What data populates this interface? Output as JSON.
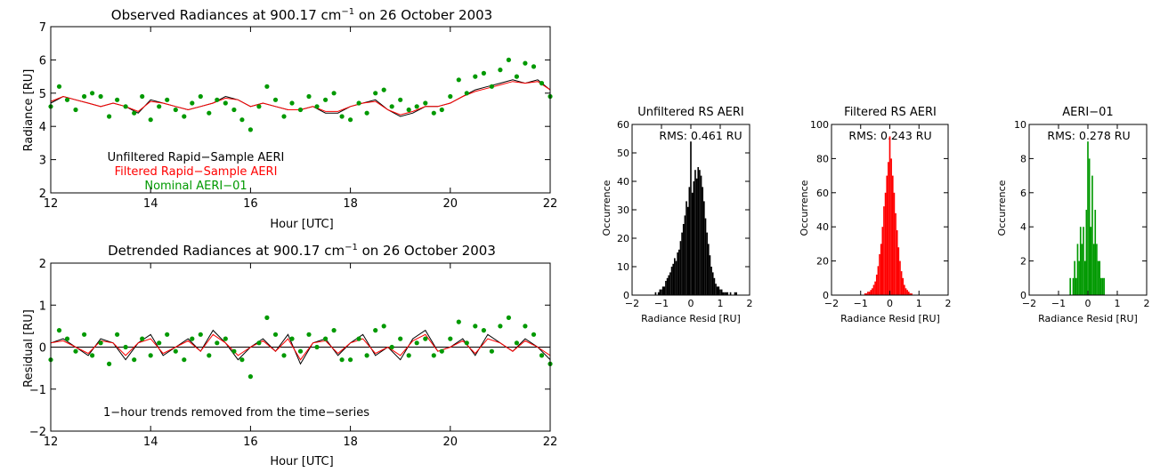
{
  "colors": {
    "unfiltered": "#000000",
    "filtered": "#ff0000",
    "nominal": "#009900",
    "axis": "#000000"
  },
  "chart_data": [
    {
      "type": "line",
      "title": "Observed Radiances at 900.17 cm",
      "title_sup": "−1",
      "title_end": " on 26 October 2003",
      "xlabel": "Hour [UTC]",
      "ylabel": "Radiance [RU]",
      "xlim": [
        12,
        22
      ],
      "ylim": [
        2,
        7
      ],
      "xticks": [
        12,
        14,
        16,
        18,
        20,
        22
      ],
      "yticks": [
        2,
        3,
        4,
        5,
        6,
        7
      ],
      "grid": false,
      "legend": [
        "Unfiltered Rapid−Sample AERI",
        "Filtered Rapid−Sample AERI",
        "Nominal AERI−01"
      ],
      "legend_placement": "lower-left",
      "series": [
        {
          "name": "Unfiltered Rapid−Sample AERI",
          "color": "#000000",
          "style": "line",
          "x": [
            12.0,
            12.25,
            12.5,
            12.75,
            13.0,
            13.25,
            13.5,
            13.75,
            14.0,
            14.25,
            14.5,
            14.75,
            15.0,
            15.25,
            15.5,
            15.75,
            16.0,
            16.25,
            16.5,
            16.75,
            17.0,
            17.25,
            17.5,
            17.75,
            18.0,
            18.25,
            18.5,
            18.75,
            19.0,
            19.25,
            19.5,
            19.75,
            20.0,
            20.25,
            20.5,
            20.75,
            21.0,
            21.25,
            21.5,
            21.75,
            22.0
          ],
          "y": [
            4.7,
            4.9,
            4.8,
            4.7,
            4.6,
            4.7,
            4.6,
            4.4,
            4.8,
            4.7,
            4.6,
            4.5,
            4.6,
            4.7,
            4.9,
            4.8,
            4.6,
            4.7,
            4.6,
            4.5,
            4.5,
            4.6,
            4.4,
            4.4,
            4.6,
            4.7,
            4.8,
            4.5,
            4.3,
            4.4,
            4.6,
            4.6,
            4.7,
            4.9,
            5.1,
            5.2,
            5.3,
            5.4,
            5.3,
            5.4,
            5.1
          ]
        },
        {
          "name": "Filtered Rapid−Sample AERI",
          "color": "#ff0000",
          "style": "line",
          "x": [
            12.0,
            12.25,
            12.5,
            12.75,
            13.0,
            13.25,
            13.5,
            13.75,
            14.0,
            14.25,
            14.5,
            14.75,
            15.0,
            15.25,
            15.5,
            15.75,
            16.0,
            16.25,
            16.5,
            16.75,
            17.0,
            17.25,
            17.5,
            17.75,
            18.0,
            18.25,
            18.5,
            18.75,
            19.0,
            19.25,
            19.5,
            19.75,
            20.0,
            20.25,
            20.5,
            20.75,
            21.0,
            21.25,
            21.5,
            21.75,
            22.0
          ],
          "y": [
            4.75,
            4.9,
            4.8,
            4.7,
            4.6,
            4.7,
            4.6,
            4.45,
            4.75,
            4.7,
            4.6,
            4.5,
            4.6,
            4.7,
            4.85,
            4.8,
            4.6,
            4.7,
            4.6,
            4.5,
            4.5,
            4.6,
            4.45,
            4.45,
            4.6,
            4.7,
            4.75,
            4.5,
            4.35,
            4.45,
            4.6,
            4.6,
            4.7,
            4.9,
            5.05,
            5.15,
            5.25,
            5.35,
            5.3,
            5.35,
            5.1
          ]
        },
        {
          "name": "Nominal AERI−01",
          "color": "#009900",
          "style": "points",
          "x": [
            12.0,
            12.17,
            12.33,
            12.5,
            12.67,
            12.83,
            13.0,
            13.17,
            13.33,
            13.5,
            13.67,
            13.83,
            14.0,
            14.17,
            14.33,
            14.5,
            14.67,
            14.83,
            15.0,
            15.17,
            15.33,
            15.5,
            15.67,
            15.83,
            16.0,
            16.17,
            16.33,
            16.5,
            16.67,
            16.83,
            17.0,
            17.17,
            17.33,
            17.5,
            17.67,
            17.83,
            18.0,
            18.17,
            18.33,
            18.5,
            18.67,
            18.83,
            19.0,
            19.17,
            19.33,
            19.5,
            19.67,
            19.83,
            20.0,
            20.17,
            20.33,
            20.5,
            20.67,
            20.83,
            21.0,
            21.17,
            21.33,
            21.5,
            21.67,
            21.83,
            22.0
          ],
          "y": [
            4.6,
            5.2,
            4.8,
            4.5,
            4.9,
            5.0,
            4.9,
            4.3,
            4.8,
            4.6,
            4.4,
            4.9,
            4.2,
            4.6,
            4.8,
            4.5,
            4.3,
            4.7,
            4.9,
            4.4,
            4.8,
            4.7,
            4.5,
            4.2,
            3.9,
            4.6,
            5.2,
            4.8,
            4.3,
            4.7,
            4.5,
            4.9,
            4.6,
            4.8,
            5.0,
            4.3,
            4.2,
            4.7,
            4.4,
            5.0,
            5.1,
            4.6,
            4.8,
            4.5,
            4.6,
            4.7,
            4.4,
            4.5,
            4.9,
            5.4,
            5.0,
            5.5,
            5.6,
            5.2,
            5.7,
            6.0,
            5.5,
            5.9,
            5.8,
            5.3,
            4.9
          ]
        }
      ]
    },
    {
      "type": "line",
      "title": "Detrended Radiances at 900.17 cm",
      "title_sup": "−1",
      "title_end": " on 26 October 2003",
      "xlabel": "Hour [UTC]",
      "ylabel": "Residual [RU]",
      "xlim": [
        12,
        22
      ],
      "ylim": [
        -2,
        2
      ],
      "xticks": [
        12,
        14,
        16,
        18,
        20,
        22
      ],
      "yticks": [
        -2,
        -1,
        0,
        1,
        2
      ],
      "grid": false,
      "annotation": "1−hour trends removed from the time−series",
      "series": [
        {
          "name": "Unfiltered Rapid−Sample AERI",
          "color": "#000000",
          "style": "line",
          "x": [
            12.0,
            12.25,
            12.5,
            12.75,
            13.0,
            13.25,
            13.5,
            13.75,
            14.0,
            14.25,
            14.5,
            14.75,
            15.0,
            15.25,
            15.5,
            15.75,
            16.0,
            16.25,
            16.5,
            16.75,
            17.0,
            17.25,
            17.5,
            17.75,
            18.0,
            18.25,
            18.5,
            18.75,
            19.0,
            19.25,
            19.5,
            19.75,
            20.0,
            20.25,
            20.5,
            20.75,
            21.0,
            21.25,
            21.5,
            21.75,
            22.0
          ],
          "y": [
            0.1,
            0.2,
            0.0,
            -0.2,
            0.2,
            0.1,
            -0.3,
            0.1,
            0.3,
            -0.2,
            0.0,
            0.2,
            -0.1,
            0.4,
            0.1,
            -0.3,
            0.0,
            0.2,
            -0.1,
            0.3,
            -0.4,
            0.1,
            0.2,
            -0.2,
            0.1,
            0.3,
            -0.2,
            0.0,
            -0.3,
            0.2,
            0.4,
            -0.1,
            0.0,
            0.2,
            -0.2,
            0.3,
            0.1,
            -0.1,
            0.2,
            0.0,
            -0.3
          ]
        },
        {
          "name": "Filtered Rapid−Sample AERI",
          "color": "#ff0000",
          "style": "line",
          "x": [
            12.0,
            12.25,
            12.5,
            12.75,
            13.0,
            13.25,
            13.5,
            13.75,
            14.0,
            14.25,
            14.5,
            14.75,
            15.0,
            15.25,
            15.5,
            15.75,
            16.0,
            16.25,
            16.5,
            16.75,
            17.0,
            17.25,
            17.5,
            17.75,
            18.0,
            18.25,
            18.5,
            18.75,
            19.0,
            19.25,
            19.5,
            19.75,
            20.0,
            20.25,
            20.5,
            20.75,
            21.0,
            21.25,
            21.5,
            21.75,
            22.0
          ],
          "y": [
            0.1,
            0.15,
            0.0,
            -0.15,
            0.15,
            0.1,
            -0.2,
            0.1,
            0.2,
            -0.15,
            0.0,
            0.15,
            -0.1,
            0.3,
            0.1,
            -0.2,
            0.0,
            0.15,
            -0.1,
            0.2,
            -0.3,
            0.1,
            0.15,
            -0.15,
            0.1,
            0.2,
            -0.15,
            0.0,
            -0.2,
            0.15,
            0.3,
            -0.1,
            0.0,
            0.15,
            -0.15,
            0.2,
            0.1,
            -0.1,
            0.15,
            0.0,
            -0.2
          ]
        },
        {
          "name": "Nominal AERI−01",
          "color": "#009900",
          "style": "points",
          "x": [
            12.0,
            12.17,
            12.33,
            12.5,
            12.67,
            12.83,
            13.0,
            13.17,
            13.33,
            13.5,
            13.67,
            13.83,
            14.0,
            14.17,
            14.33,
            14.5,
            14.67,
            14.83,
            15.0,
            15.17,
            15.33,
            15.5,
            15.67,
            15.83,
            16.0,
            16.17,
            16.33,
            16.5,
            16.67,
            16.83,
            17.0,
            17.17,
            17.33,
            17.5,
            17.67,
            17.83,
            18.0,
            18.17,
            18.33,
            18.5,
            18.67,
            18.83,
            19.0,
            19.17,
            19.33,
            19.5,
            19.67,
            19.83,
            20.0,
            20.17,
            20.33,
            20.5,
            20.67,
            20.83,
            21.0,
            21.17,
            21.33,
            21.5,
            21.67,
            21.83,
            22.0
          ],
          "y": [
            -0.3,
            0.4,
            0.2,
            -0.1,
            0.3,
            -0.2,
            0.1,
            -0.4,
            0.3,
            0.0,
            -0.3,
            0.2,
            -0.2,
            0.1,
            0.3,
            -0.1,
            -0.3,
            0.2,
            0.3,
            -0.2,
            0.1,
            0.2,
            -0.1,
            -0.3,
            -0.7,
            0.1,
            0.7,
            0.3,
            -0.2,
            0.2,
            -0.1,
            0.3,
            0.0,
            0.2,
            0.4,
            -0.3,
            -0.3,
            0.2,
            -0.2,
            0.4,
            0.5,
            0.0,
            0.2,
            -0.2,
            0.1,
            0.2,
            -0.2,
            -0.1,
            0.2,
            0.6,
            0.1,
            0.5,
            0.4,
            -0.1,
            0.5,
            0.7,
            0.1,
            0.5,
            0.3,
            -0.2,
            -0.4
          ]
        }
      ]
    },
    {
      "type": "bar",
      "title": "Unfiltered RS AERI",
      "annotation": "RMS: 0.461 RU",
      "xlabel": "Radiance Resid [RU]",
      "ylabel": "Occurrence",
      "xlim": [
        -2,
        2
      ],
      "ylim": [
        0,
        60
      ],
      "xticks": [
        -2,
        -1,
        0,
        1,
        2
      ],
      "yticks": [
        0,
        10,
        20,
        30,
        40,
        50,
        60
      ],
      "color": "#000000",
      "bin_width": 0.05,
      "x": [
        -1.2,
        -1.15,
        -1.1,
        -1.05,
        -1.0,
        -0.95,
        -0.9,
        -0.85,
        -0.8,
        -0.75,
        -0.7,
        -0.65,
        -0.6,
        -0.55,
        -0.5,
        -0.45,
        -0.4,
        -0.35,
        -0.3,
        -0.25,
        -0.2,
        -0.15,
        -0.1,
        -0.05,
        0.0,
        0.05,
        0.1,
        0.15,
        0.2,
        0.25,
        0.3,
        0.35,
        0.4,
        0.45,
        0.5,
        0.55,
        0.6,
        0.65,
        0.7,
        0.75,
        0.8,
        0.85,
        0.9,
        0.95,
        1.0,
        1.05,
        1.1,
        1.15,
        1.2,
        1.25,
        1.3,
        1.35,
        1.4,
        1.45,
        1.5,
        1.55
      ],
      "values": [
        1,
        0,
        1,
        2,
        2,
        3,
        3,
        5,
        6,
        7,
        8,
        10,
        11,
        13,
        12,
        15,
        16,
        19,
        22,
        25,
        28,
        33,
        31,
        38,
        54,
        36,
        40,
        44,
        41,
        45,
        44,
        42,
        38,
        33,
        27,
        22,
        18,
        14,
        10,
        8,
        6,
        4,
        3,
        3,
        2,
        2,
        1,
        1,
        1,
        1,
        0,
        1,
        0,
        0,
        1,
        1
      ]
    },
    {
      "type": "bar",
      "title": "Filtered RS AERI",
      "annotation": "RMS: 0.243 RU",
      "xlabel": "Radiance Resid [RU]",
      "ylabel": "Occurrence",
      "xlim": [
        -2,
        2
      ],
      "ylim": [
        0,
        100
      ],
      "xticks": [
        -2,
        -1,
        0,
        1,
        2
      ],
      "yticks": [
        0,
        20,
        40,
        60,
        80,
        100
      ],
      "color": "#ff0000",
      "bin_width": 0.05,
      "x": [
        -0.85,
        -0.8,
        -0.75,
        -0.7,
        -0.65,
        -0.6,
        -0.55,
        -0.5,
        -0.45,
        -0.4,
        -0.35,
        -0.3,
        -0.25,
        -0.2,
        -0.15,
        -0.1,
        -0.05,
        0.0,
        0.05,
        0.1,
        0.15,
        0.2,
        0.25,
        0.3,
        0.35,
        0.4,
        0.45,
        0.5,
        0.55,
        0.6,
        0.65,
        0.7,
        0.75
      ],
      "values": [
        1,
        1,
        2,
        2,
        3,
        4,
        6,
        8,
        12,
        17,
        24,
        30,
        40,
        52,
        60,
        70,
        78,
        93,
        80,
        70,
        60,
        48,
        38,
        28,
        20,
        14,
        10,
        6,
        4,
        3,
        2,
        1,
        1
      ]
    },
    {
      "type": "bar",
      "title": "AERI−01",
      "annotation": "RMS: 0.278 RU",
      "xlabel": "Radiance Resid [RU]",
      "ylabel": "Occurrence",
      "xlim": [
        -2,
        2
      ],
      "ylim": [
        0,
        10
      ],
      "xticks": [
        -2,
        -1,
        0,
        1,
        2
      ],
      "yticks": [
        0,
        2,
        4,
        6,
        8,
        10
      ],
      "color": "#009900",
      "bin_width": 0.05,
      "x": [
        -0.6,
        -0.5,
        -0.45,
        -0.4,
        -0.35,
        -0.3,
        -0.25,
        -0.2,
        -0.15,
        -0.1,
        -0.05,
        0.0,
        0.05,
        0.1,
        0.15,
        0.2,
        0.25,
        0.3,
        0.35,
        0.4,
        0.45,
        0.5,
        0.55
      ],
      "values": [
        1,
        1,
        2,
        1,
        3,
        2,
        4,
        3,
        4,
        2,
        5,
        9,
        8,
        4,
        7,
        3,
        5,
        3,
        2,
        2,
        1,
        1,
        1
      ]
    }
  ]
}
